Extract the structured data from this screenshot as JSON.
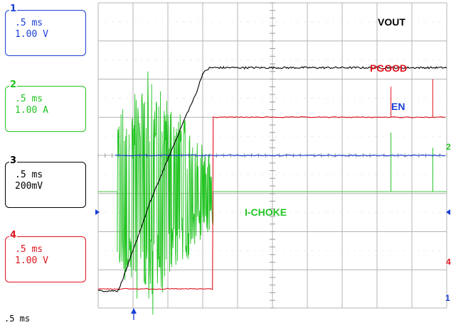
{
  "channels": [
    {
      "num": "1",
      "time": ".5 ms",
      "scale": "1.00 V",
      "color": "#1a3fd6"
    },
    {
      "num": "2",
      "time": ".5 ms",
      "scale": "1.00 A",
      "color": "#22c422"
    },
    {
      "num": "3",
      "time": ".5 ms",
      "scale": "200mV",
      "color": "#000000"
    },
    {
      "num": "4",
      "time": ".5 ms",
      "scale": "1.00 V",
      "color": "#e0141e"
    }
  ],
  "timebase": ".5 ms",
  "edge_markers": [
    "2",
    "4",
    "1"
  ],
  "chart_data": {
    "type": "line",
    "grid": true,
    "x_divisions": 10,
    "y_divisions": 8,
    "series": [
      {
        "name": "VOUT",
        "color": "#000000",
        "x": [
          0,
          0.55,
          0.6,
          1.0,
          1.5,
          2.0,
          2.5,
          2.8,
          3.0,
          3.2,
          3.6,
          4.2,
          10
        ],
        "y": [
          0.45,
          0.45,
          0.5,
          1.5,
          2.8,
          3.9,
          5.0,
          5.6,
          6.15,
          6.3,
          6.3,
          6.3,
          6.3
        ]
      },
      {
        "name": "PGOOD",
        "color": "#e0141e",
        "x": [
          0,
          3.3,
          3.3,
          3.4,
          10
        ],
        "y": [
          0.5,
          0.5,
          5.0,
          5.0,
          5.0
        ]
      },
      {
        "name": "EN",
        "color": "#1a3fd6",
        "x": [
          0,
          0.5,
          0.5,
          10
        ],
        "y": [
          4.0,
          4.0,
          4.0,
          4.0
        ]
      },
      {
        "name": "I-CHOKE",
        "color": "#22c422",
        "x": [
          0,
          0.55,
          3.3,
          10
        ],
        "y": [
          3.05,
          3.05,
          3.05,
          3.05
        ]
      }
    ]
  }
}
